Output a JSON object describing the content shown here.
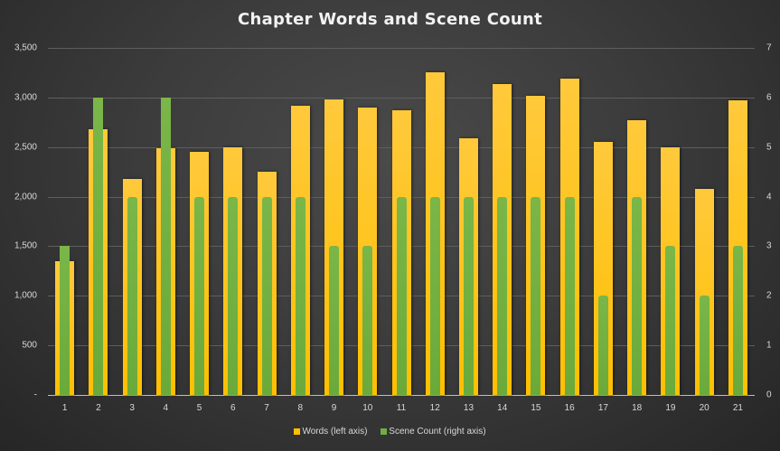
{
  "chart_data": {
    "type": "bar",
    "title": "Chapter Words and Scene Count",
    "xlabel": "",
    "ylabel": "",
    "categories": [
      "1",
      "2",
      "3",
      "4",
      "5",
      "6",
      "7",
      "8",
      "9",
      "10",
      "11",
      "12",
      "13",
      "14",
      "15",
      "16",
      "17",
      "18",
      "19",
      "20",
      "21"
    ],
    "series": [
      {
        "name": "Words (left axis)",
        "axis": "left",
        "color": "#ffc000",
        "values": [
          1350,
          2680,
          2180,
          2490,
          2450,
          2500,
          2250,
          2920,
          2980,
          2900,
          2870,
          3255,
          2590,
          3135,
          3015,
          3190,
          2550,
          2770,
          2500,
          2080,
          2970
        ]
      },
      {
        "name": "Scene Count (right axis)",
        "axis": "right",
        "color": "#70ad47",
        "values": [
          3,
          6,
          4,
          6,
          4,
          4,
          4,
          4,
          3,
          3,
          4,
          4,
          4,
          4,
          4,
          4,
          2,
          4,
          3,
          2,
          3
        ]
      }
    ],
    "ylim_left": [
      0,
      3500
    ],
    "ylim_right": [
      0,
      7
    ],
    "left_ticks": [
      "-",
      "500",
      "1,000",
      "1,500",
      "2,000",
      "2,500",
      "3,000",
      "3,500"
    ],
    "right_ticks": [
      "0",
      "1",
      "2",
      "3",
      "4",
      "5",
      "6",
      "7"
    ],
    "grid": true,
    "legend_position": "bottom"
  },
  "legend": {
    "words": "Words (left axis)",
    "scenes": "Scene Count (right axis)"
  },
  "colors": {
    "words": "#ffc000",
    "scenes": "#70ad47"
  }
}
